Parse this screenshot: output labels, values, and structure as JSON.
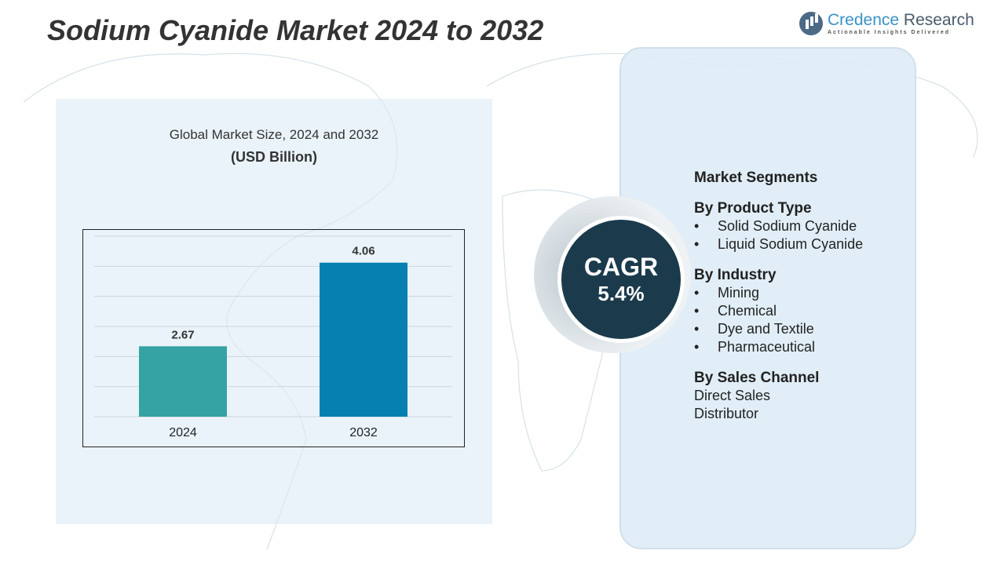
{
  "title": "Sodium Cyanide Market 2024 to 2032",
  "logo": {
    "name_a": "Credence",
    "name_b": "Research",
    "tagline": "Actionable Insights Delivered"
  },
  "chart_data": {
    "type": "bar",
    "title": "Global Market Size, 2024 and 2032",
    "subtitle": "(USD Billion)",
    "categories": [
      "2024",
      "2032"
    ],
    "values": [
      2.67,
      4.06
    ],
    "value_labels": [
      "2.67",
      "4.06"
    ],
    "colors": [
      "#35a3a3",
      "#0580b0"
    ],
    "ylim": [
      1.5,
      4.5
    ],
    "grid": true
  },
  "cagr": {
    "label": "CAGR",
    "value": "5.4%"
  },
  "segments": {
    "heading": "Market Segments",
    "groups": [
      {
        "title": "By Product Type",
        "bullets": true,
        "items": [
          "Solid Sodium Cyanide",
          "Liquid Sodium Cyanide"
        ]
      },
      {
        "title": "By Industry",
        "bullets": true,
        "items": [
          "Mining",
          "Chemical",
          "Dye and Textile",
          "Pharmaceutical"
        ]
      },
      {
        "title": "By Sales Channel",
        "bullets": false,
        "items": [
          "Direct Sales",
          "Distributor"
        ]
      }
    ]
  }
}
